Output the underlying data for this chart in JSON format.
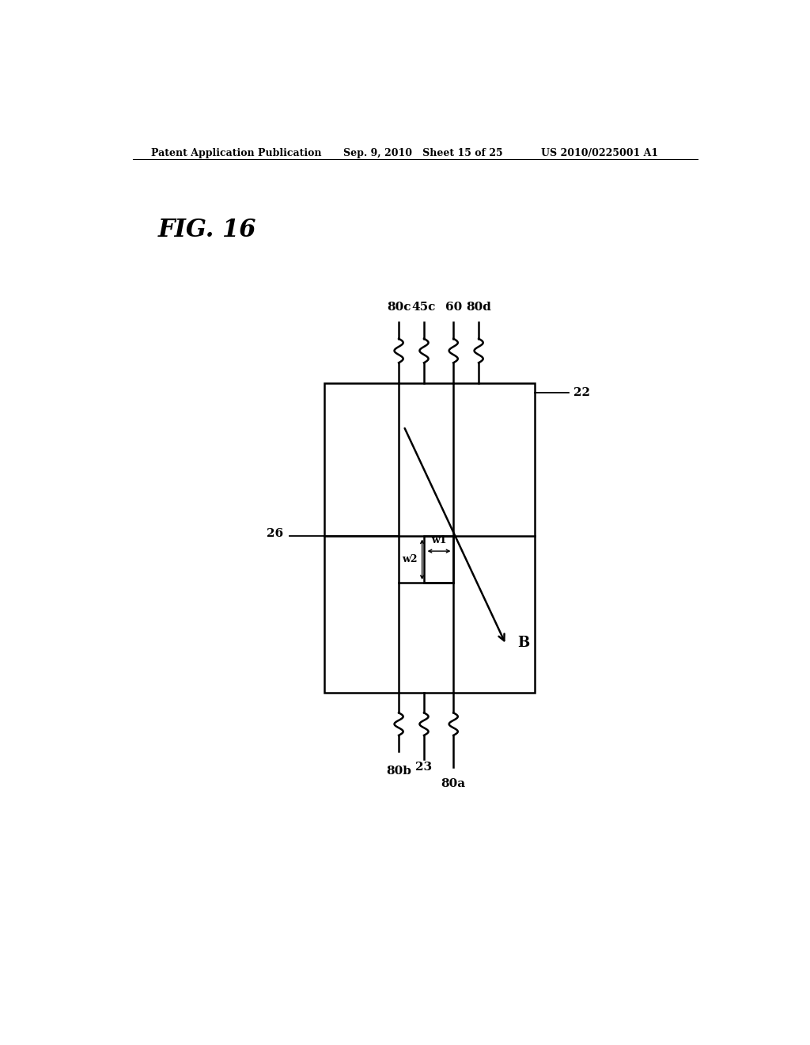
{
  "background_color": "#ffffff",
  "header_left": "Patent Application Publication",
  "header_mid": "Sep. 9, 2010   Sheet 15 of 25",
  "header_right": "US 2010/0225001 A1",
  "fig_label": "FIG. 16",
  "label_22": "22",
  "label_26": "26",
  "label_80c": "80c",
  "label_45c": "45c",
  "label_60": "60",
  "label_80d": "80d",
  "label_80b": "80b",
  "label_23": "23",
  "label_80a": "80a",
  "label_B": "B",
  "label_w1": "w1",
  "label_w2": "w2",
  "ox": 0.355,
  "oy": 0.295,
  "ow": 0.335,
  "oh": 0.385
}
